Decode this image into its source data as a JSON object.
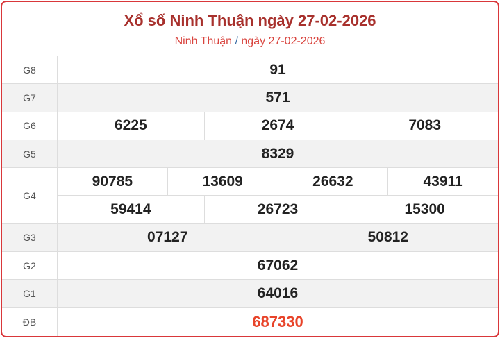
{
  "header": {
    "title": "Xổ số Ninh Thuận ngày 27-02-2026",
    "breadcrumb_province": "Ninh Thuận",
    "breadcrumb_sep": "/",
    "breadcrumb_date": "ngày 27-02-2026"
  },
  "prizes": [
    {
      "label": "G8",
      "lines": [
        [
          "91"
        ]
      ]
    },
    {
      "label": "G7",
      "lines": [
        [
          "571"
        ]
      ]
    },
    {
      "label": "G6",
      "lines": [
        [
          "6225",
          "2674",
          "7083"
        ]
      ]
    },
    {
      "label": "G5",
      "lines": [
        [
          "8329"
        ]
      ]
    },
    {
      "label": "G4",
      "lines": [
        [
          "90785",
          "13609",
          "26632",
          "43911"
        ],
        [
          "59414",
          "26723",
          "15300"
        ]
      ]
    },
    {
      "label": "G3",
      "lines": [
        [
          "07127",
          "50812"
        ]
      ]
    },
    {
      "label": "G2",
      "lines": [
        [
          "67062"
        ]
      ]
    },
    {
      "label": "G1",
      "lines": [
        [
          "64016"
        ]
      ]
    },
    {
      "label": "ĐB",
      "lines": [
        [
          "687330"
        ]
      ]
    }
  ],
  "colors": {
    "border": "#d9373a",
    "title": "#a8312d",
    "special": "#e8442a"
  }
}
